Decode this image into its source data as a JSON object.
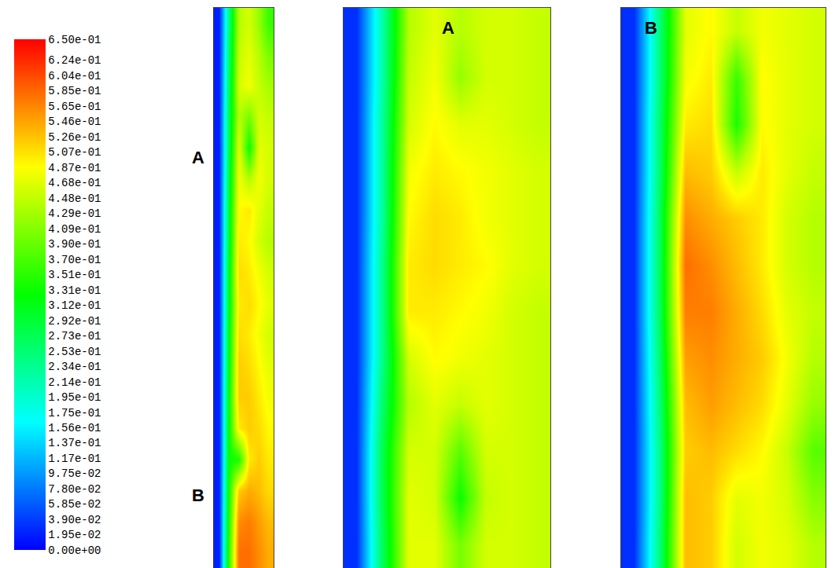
{
  "chart_data": {
    "type": "heatmap",
    "tick_labels": false,
    "colorbar": {
      "range": [
        0,
        0.65
      ],
      "ticks": [
        {
          "value": 0.65,
          "label": "6.50e-01"
        },
        {
          "value": 0.624,
          "label": "6.24e-01"
        },
        {
          "value": 0.604,
          "label": "6.04e-01"
        },
        {
          "value": 0.585,
          "label": "5.85e-01"
        },
        {
          "value": 0.565,
          "label": "5.65e-01"
        },
        {
          "value": 0.546,
          "label": "5.46e-01"
        },
        {
          "value": 0.526,
          "label": "5.26e-01"
        },
        {
          "value": 0.507,
          "label": "5.07e-01"
        },
        {
          "value": 0.487,
          "label": "4.87e-01"
        },
        {
          "value": 0.468,
          "label": "4.68e-01"
        },
        {
          "value": 0.448,
          "label": "4.48e-01"
        },
        {
          "value": 0.429,
          "label": "4.29e-01"
        },
        {
          "value": 0.409,
          "label": "4.09e-01"
        },
        {
          "value": 0.39,
          "label": "3.90e-01"
        },
        {
          "value": 0.37,
          "label": "3.70e-01"
        },
        {
          "value": 0.351,
          "label": "3.51e-01"
        },
        {
          "value": 0.331,
          "label": "3.31e-01"
        },
        {
          "value": 0.312,
          "label": "3.12e-01"
        },
        {
          "value": 0.292,
          "label": "2.92e-01"
        },
        {
          "value": 0.273,
          "label": "2.73e-01"
        },
        {
          "value": 0.253,
          "label": "2.53e-01"
        },
        {
          "value": 0.234,
          "label": "2.34e-01"
        },
        {
          "value": 0.214,
          "label": "2.14e-01"
        },
        {
          "value": 0.195,
          "label": "1.95e-01"
        },
        {
          "value": 0.175,
          "label": "1.75e-01"
        },
        {
          "value": 0.156,
          "label": "1.56e-01"
        },
        {
          "value": 0.137,
          "label": "1.37e-01"
        },
        {
          "value": 0.117,
          "label": "1.17e-01"
        },
        {
          "value": 0.0975,
          "label": "9.75e-02"
        },
        {
          "value": 0.078,
          "label": "7.80e-02"
        },
        {
          "value": 0.0585,
          "label": "5.85e-02"
        },
        {
          "value": 0.039,
          "label": "3.90e-02"
        },
        {
          "value": 0.0195,
          "label": "1.95e-02"
        },
        {
          "value": 0,
          "label": "0.00e+00"
        }
      ]
    },
    "panels": [
      {
        "side_labels": [
          "A",
          "B"
        ],
        "cells": [
          [
            0.02,
            0.25,
            0.44,
            0.46,
            0.42,
            0.36
          ],
          [
            0.02,
            0.26,
            0.45,
            0.47,
            0.44,
            0.4
          ],
          [
            0.02,
            0.27,
            0.46,
            0.48,
            0.45,
            0.43
          ],
          [
            0.02,
            0.28,
            0.44,
            0.4,
            0.46,
            0.45
          ],
          [
            0.02,
            0.28,
            0.47,
            0.33,
            0.47,
            0.46
          ],
          [
            0.02,
            0.29,
            0.48,
            0.44,
            0.48,
            0.46
          ],
          [
            0.02,
            0.3,
            0.49,
            0.5,
            0.47,
            0.45
          ],
          [
            0.02,
            0.3,
            0.5,
            0.49,
            0.46,
            0.44
          ],
          [
            0.02,
            0.31,
            0.51,
            0.5,
            0.48,
            0.46
          ],
          [
            0.02,
            0.31,
            0.5,
            0.51,
            0.49,
            0.47
          ],
          [
            0.02,
            0.32,
            0.51,
            0.5,
            0.48,
            0.46
          ],
          [
            0.02,
            0.32,
            0.52,
            0.51,
            0.49,
            0.47
          ],
          [
            0.02,
            0.33,
            0.52,
            0.52,
            0.5,
            0.48
          ],
          [
            0.02,
            0.33,
            0.5,
            0.52,
            0.51,
            0.49
          ],
          [
            0.02,
            0.33,
            0.34,
            0.5,
            0.52,
            0.5
          ],
          [
            0.02,
            0.34,
            0.52,
            0.54,
            0.53,
            0.51
          ],
          [
            0.02,
            0.35,
            0.56,
            0.57,
            0.55,
            0.53
          ],
          [
            0.02,
            0.36,
            0.58,
            0.58,
            0.56,
            0.54
          ]
        ]
      },
      {
        "title": "A",
        "cells": [
          [
            0.03,
            0.22,
            0.44,
            0.47,
            0.44,
            0.46,
            0.46,
            0.45
          ],
          [
            0.03,
            0.22,
            0.45,
            0.48,
            0.42,
            0.46,
            0.46,
            0.45
          ],
          [
            0.03,
            0.23,
            0.46,
            0.49,
            0.47,
            0.47,
            0.46,
            0.45
          ],
          [
            0.03,
            0.23,
            0.48,
            0.5,
            0.49,
            0.48,
            0.47,
            0.46
          ],
          [
            0.03,
            0.23,
            0.49,
            0.51,
            0.5,
            0.48,
            0.47,
            0.46
          ],
          [
            0.03,
            0.24,
            0.5,
            0.51,
            0.5,
            0.49,
            0.47,
            0.46
          ],
          [
            0.03,
            0.24,
            0.5,
            0.5,
            0.49,
            0.48,
            0.46,
            0.45
          ],
          [
            0.03,
            0.24,
            0.46,
            0.49,
            0.48,
            0.47,
            0.46,
            0.45
          ],
          [
            0.03,
            0.26,
            0.44,
            0.47,
            0.45,
            0.47,
            0.46,
            0.45
          ],
          [
            0.03,
            0.28,
            0.46,
            0.46,
            0.38,
            0.46,
            0.46,
            0.45
          ],
          [
            0.03,
            0.28,
            0.47,
            0.46,
            0.33,
            0.45,
            0.46,
            0.45
          ],
          [
            0.03,
            0.27,
            0.47,
            0.47,
            0.4,
            0.46,
            0.46,
            0.45
          ]
        ]
      },
      {
        "title": "B",
        "cells": [
          [
            0.03,
            0.25,
            0.47,
            0.49,
            0.45,
            0.48,
            0.47,
            0.46
          ],
          [
            0.03,
            0.25,
            0.48,
            0.5,
            0.36,
            0.49,
            0.47,
            0.46
          ],
          [
            0.03,
            0.26,
            0.5,
            0.51,
            0.34,
            0.49,
            0.47,
            0.46
          ],
          [
            0.03,
            0.26,
            0.53,
            0.52,
            0.45,
            0.5,
            0.47,
            0.45
          ],
          [
            0.03,
            0.27,
            0.56,
            0.54,
            0.52,
            0.5,
            0.46,
            0.44
          ],
          [
            0.03,
            0.27,
            0.58,
            0.56,
            0.53,
            0.5,
            0.46,
            0.44
          ],
          [
            0.03,
            0.27,
            0.57,
            0.57,
            0.54,
            0.51,
            0.47,
            0.45
          ],
          [
            0.03,
            0.26,
            0.55,
            0.56,
            0.54,
            0.52,
            0.48,
            0.44
          ],
          [
            0.03,
            0.25,
            0.53,
            0.55,
            0.53,
            0.51,
            0.47,
            0.42
          ],
          [
            0.03,
            0.24,
            0.52,
            0.53,
            0.51,
            0.49,
            0.45,
            0.38
          ],
          [
            0.03,
            0.24,
            0.53,
            0.52,
            0.47,
            0.48,
            0.46,
            0.41
          ],
          [
            0.03,
            0.25,
            0.53,
            0.52,
            0.46,
            0.48,
            0.47,
            0.44
          ]
        ]
      }
    ]
  }
}
